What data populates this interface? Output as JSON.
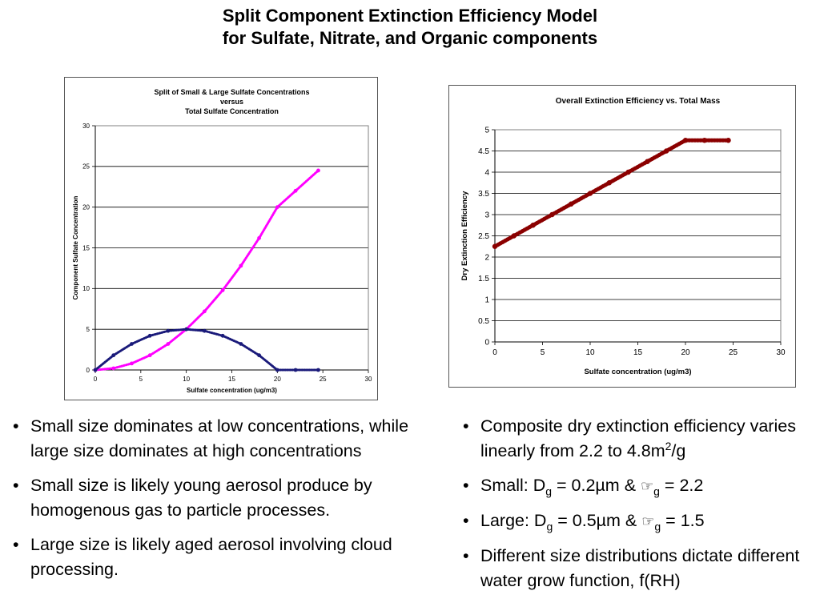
{
  "page": {
    "title_line1": "Split Component Extinction Efficiency Model",
    "title_line2": "for Sulfate, Nitrate, and Organic components"
  },
  "chart_data": [
    {
      "type": "scatter",
      "title": "Split of Small & Large Sulfate Concentrations",
      "subtitle_lines": [
        "versus",
        "Total Sulfate Concentration"
      ],
      "xlabel": "Sulfate concentration (ug/m3)",
      "ylabel": "Component Sulfate Concentration",
      "xlim": [
        0,
        30
      ],
      "ylim": [
        0,
        30
      ],
      "xticks": [
        0,
        5,
        10,
        15,
        20,
        25,
        30
      ],
      "yticks": [
        0,
        5,
        10,
        15,
        20,
        25,
        30
      ],
      "grid": "horizontal",
      "x": [
        0,
        2,
        4,
        6,
        8,
        10,
        12,
        14,
        16,
        18,
        20,
        22,
        24.5
      ],
      "series": [
        {
          "color": "#ff00ff",
          "values": [
            0,
            0.2,
            0.8,
            1.8,
            3.2,
            5.0,
            7.2,
            9.8,
            12.8,
            16.2,
            20.0,
            22.0,
            24.5
          ]
        },
        {
          "color": "#1a1a7a",
          "values": [
            0,
            1.8,
            3.2,
            4.2,
            4.8,
            5.0,
            4.8,
            4.2,
            3.2,
            1.8,
            0,
            0,
            0
          ]
        }
      ]
    },
    {
      "type": "scatter",
      "title": "Overall Extinction Efficiency vs. Total Mass",
      "xlabel": "Sulfate concentration (ug/m3)",
      "ylabel": "Dry Extinction Efficiency",
      "xlim": [
        0,
        30
      ],
      "ylim": [
        0,
        5
      ],
      "xticks": [
        0,
        5,
        10,
        15,
        20,
        25,
        30
      ],
      "yticks": [
        0,
        0.5,
        1,
        1.5,
        2,
        2.5,
        3,
        3.5,
        4,
        4.5,
        5
      ],
      "grid": "horizontal",
      "x": [
        0,
        2,
        4,
        6,
        8,
        10,
        12,
        14,
        16,
        18,
        20,
        22,
        24.5
      ],
      "series": [
        {
          "color": "#8b0000",
          "values": [
            2.25,
            2.5,
            2.75,
            3.0,
            3.25,
            3.5,
            3.75,
            4.0,
            4.25,
            4.5,
            4.75,
            4.75,
            4.75
          ]
        }
      ]
    }
  ],
  "bullets_left": [
    "Small size dominates at low concentrations, while large size dominates at high concentrations",
    "Small size is likely young aerosol produce by homogenous gas to particle processes.",
    "Large size is likely aged aerosol involving cloud processing."
  ],
  "bullets_right": {
    "b1_text": "Composite dry extinction efficiency varies linearly from 2.2 to 4.8m",
    "b1_sup": "2",
    "b1_tail": "/g",
    "b2_pre": "Small: D",
    "b2_sub1": "g",
    "b2_mid": " = 0.2µm & ",
    "b2_sym": "☞",
    "b2_sub2": "g",
    "b2_tail": " = 2.2",
    "b3_pre": "Large: D",
    "b3_sub1": "g",
    "b3_mid": " = 0.5µm & ",
    "b3_sym": "☞",
    "b3_sub2": "g",
    "b3_tail": " = 1.5",
    "b4_text": "Different size distributions dictate different water grow function, f(RH)"
  }
}
